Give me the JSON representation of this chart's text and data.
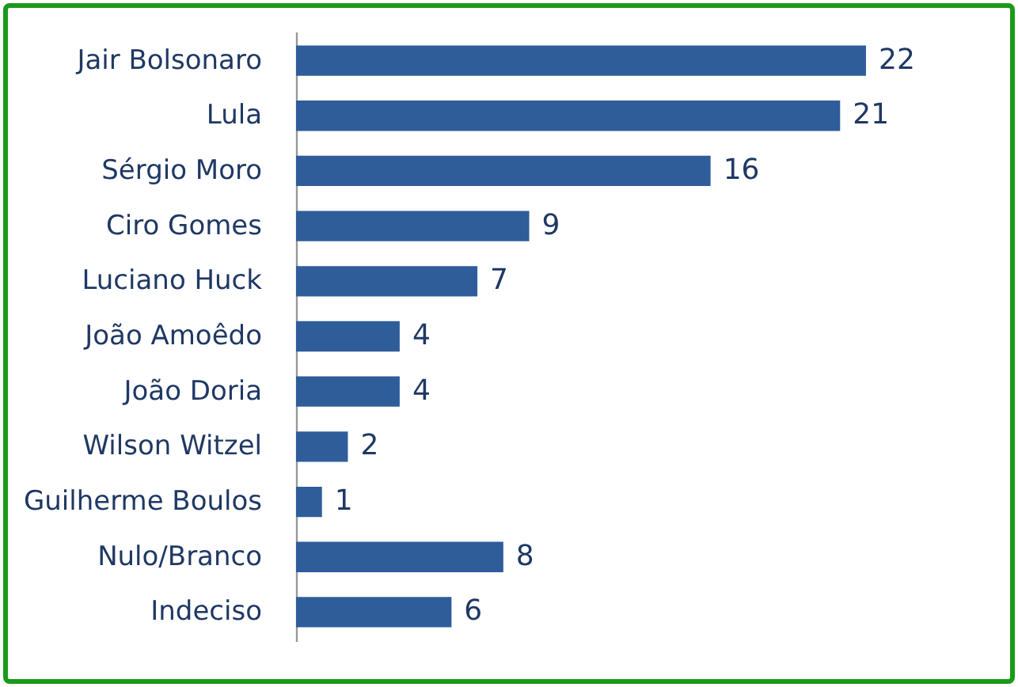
{
  "chart_data": {
    "type": "bar",
    "orientation": "horizontal",
    "categories": [
      "Jair Bolsonaro",
      "Lula",
      "Sérgio Moro",
      "Ciro Gomes",
      "Luciano Huck",
      "João Amoêdo",
      "João Doria",
      "Wilson Witzel",
      "Guilherme Boulos",
      "Nulo/Branco",
      "Indeciso"
    ],
    "values": [
      22,
      21,
      16,
      9,
      7,
      4,
      4,
      2,
      1,
      8,
      6
    ],
    "color": "#2e5d9a",
    "data_labels": true,
    "grid": false
  }
}
